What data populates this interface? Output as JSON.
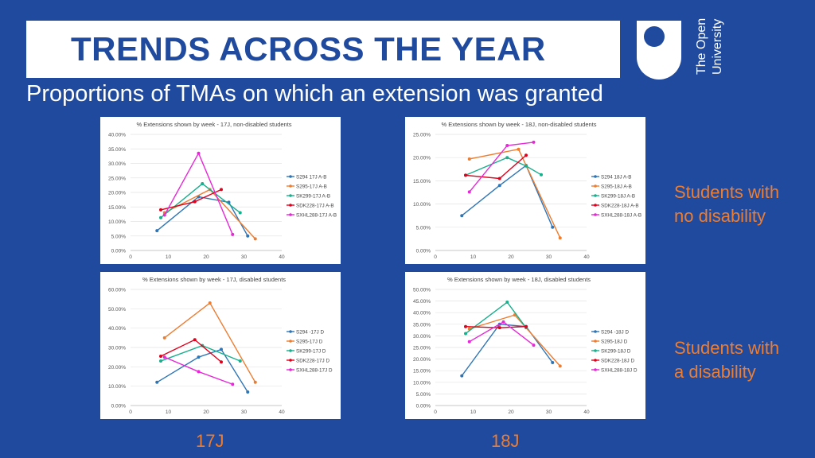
{
  "header": {
    "title": "TRENDS ACROSS THE YEAR",
    "subtitle": "Proportions of TMAs on which an extension was granted"
  },
  "logo": {
    "line1": "The Open",
    "line2": "University"
  },
  "side_labels": {
    "top_line1": "Students with",
    "top_line2": "no disability",
    "bottom_line1": "Students with",
    "bottom_line2": "a disability"
  },
  "bottom_labels": {
    "left": "17J",
    "right": "18J"
  },
  "colors": {
    "background": "#1f4a9e",
    "accent": "#ed7d31",
    "blue": "#2e75b6",
    "orange": "#ed7d31",
    "green": "#19ae8c",
    "red": "#e0001b",
    "magenta": "#e628d6"
  },
  "chart_data": [
    {
      "type": "line",
      "title": "% Extensions shown by week - 17J, non-disabled students",
      "xlim": [
        0,
        40
      ],
      "ylim": [
        0,
        40
      ],
      "xticks": [
        "0",
        "10",
        "20",
        "30",
        "40"
      ],
      "yticks": [
        "0.00%",
        "5.00%",
        "10.00%",
        "15.00%",
        "20.00%",
        "25.00%",
        "30.00%",
        "35.00%",
        "40.00%"
      ],
      "series": [
        {
          "name": "S294 17J A-B",
          "color": "#2e75b6",
          "points": [
            [
              7,
              6.8
            ],
            [
              18,
              18.5
            ],
            [
              26,
              16.6
            ],
            [
              31,
              5
            ]
          ]
        },
        {
          "name": "S295-17J A-B",
          "color": "#ed7d31",
          "points": [
            [
              9,
              13
            ],
            [
              21,
              21
            ],
            [
              33,
              4
            ]
          ]
        },
        {
          "name": "SK299-17J A-B",
          "color": "#19ae8c",
          "points": [
            [
              8,
              11.3
            ],
            [
              19,
              23
            ],
            [
              29,
              13
            ]
          ]
        },
        {
          "name": "SDK228-17J A-B",
          "color": "#e0001b",
          "points": [
            [
              8,
              14
            ],
            [
              17,
              16.8
            ],
            [
              24,
              21
            ]
          ]
        },
        {
          "name": "SXHL288-17J A-B",
          "color": "#e628d6",
          "points": [
            [
              9,
              12.2
            ],
            [
              18,
              33.5
            ],
            [
              27,
              5.5
            ]
          ]
        }
      ]
    },
    {
      "type": "line",
      "title": "% Extensions shown by week - 18J, non-disabled students",
      "xlim": [
        0,
        40
      ],
      "ylim": [
        0,
        25
      ],
      "xticks": [
        "0",
        "10",
        "20",
        "30",
        "40"
      ],
      "yticks": [
        "0.00%",
        "5.00%",
        "10.00%",
        "15.00%",
        "20.00%",
        "25.00%"
      ],
      "series": [
        {
          "name": "S294 18J A-B",
          "color": "#2e75b6",
          "points": [
            [
              7,
              7.5
            ],
            [
              17,
              14
            ],
            [
              24,
              18.3
            ],
            [
              31,
              5
            ]
          ]
        },
        {
          "name": "S295-18J A-B",
          "color": "#ed7d31",
          "points": [
            [
              9,
              19.7
            ],
            [
              22,
              21.8
            ],
            [
              33,
              2.7
            ]
          ]
        },
        {
          "name": "SK299-18J A-B",
          "color": "#19ae8c",
          "points": [
            [
              8,
              16.2
            ],
            [
              19,
              20
            ],
            [
              24,
              18.2
            ],
            [
              28,
              16.3
            ]
          ]
        },
        {
          "name": "SDK228-18J A-B",
          "color": "#e0001b",
          "points": [
            [
              8,
              16.2
            ],
            [
              17,
              15.5
            ],
            [
              24,
              20.5
            ]
          ]
        },
        {
          "name": "SXHL288-18J A-B",
          "color": "#e628d6",
          "points": [
            [
              9,
              12.6
            ],
            [
              19,
              22.6
            ],
            [
              26,
              23.3
            ]
          ]
        }
      ]
    },
    {
      "type": "line",
      "title": "% Extensions shown by week - 17J, disabled students",
      "xlim": [
        0,
        40
      ],
      "ylim": [
        0,
        60
      ],
      "xticks": [
        "0",
        "10",
        "20",
        "30",
        "40"
      ],
      "yticks": [
        "0.00%",
        "10.00%",
        "20.00%",
        "30.00%",
        "40.00%",
        "50.00%",
        "60.00%"
      ],
      "series": [
        {
          "name": "S294 -17J  D",
          "color": "#2e75b6",
          "points": [
            [
              7,
              12
            ],
            [
              18,
              25
            ],
            [
              24,
              29
            ],
            [
              31,
              7
            ]
          ]
        },
        {
          "name": "S295-17J D",
          "color": "#ed7d31",
          "points": [
            [
              9,
              35
            ],
            [
              21,
              53
            ],
            [
              33,
              12
            ]
          ]
        },
        {
          "name": "SK299-17J D",
          "color": "#19ae8c",
          "points": [
            [
              8,
              23
            ],
            [
              19,
              31
            ],
            [
              29,
              23
            ]
          ]
        },
        {
          "name": "SDK228-17J D",
          "color": "#e0001b",
          "points": [
            [
              8,
              25.5
            ],
            [
              17,
              34
            ],
            [
              24,
              22.5
            ]
          ]
        },
        {
          "name": "SXHL288-17J D",
          "color": "#e628d6",
          "points": [
            [
              9,
              25
            ],
            [
              18,
              17.5
            ],
            [
              27,
              11
            ]
          ]
        }
      ]
    },
    {
      "type": "line",
      "title": "% Extensions shown by week - 18J, disabled students",
      "xlim": [
        0,
        40
      ],
      "ylim": [
        0,
        50
      ],
      "xticks": [
        "0",
        "10",
        "20",
        "30",
        "40"
      ],
      "yticks": [
        "0.00%",
        "5.00%",
        "10.00%",
        "15.00%",
        "20.00%",
        "25.00%",
        "30.00%",
        "35.00%",
        "40.00%",
        "45.00%",
        "50.00%"
      ],
      "series": [
        {
          "name": "S294 -18J  D",
          "color": "#2e75b6",
          "points": [
            [
              7,
              12.8
            ],
            [
              17,
              35
            ],
            [
              24,
              34
            ],
            [
              31,
              18.5
            ]
          ]
        },
        {
          "name": "S295-18J D",
          "color": "#ed7d31",
          "points": [
            [
              9,
              33
            ],
            [
              21,
              39
            ],
            [
              33,
              17
            ]
          ]
        },
        {
          "name": "SK299-18J D",
          "color": "#19ae8c",
          "points": [
            [
              8,
              31
            ],
            [
              19,
              44.5
            ],
            [
              24,
              33.5
            ]
          ]
        },
        {
          "name": "SDK228-18J D",
          "color": "#e0001b",
          "points": [
            [
              8,
              34
            ],
            [
              17,
              33.5
            ],
            [
              24,
              34
            ]
          ]
        },
        {
          "name": "SXHL288-18J D",
          "color": "#e628d6",
          "points": [
            [
              9,
              27.5
            ],
            [
              18,
              36
            ],
            [
              26,
              26
            ]
          ]
        }
      ]
    }
  ]
}
